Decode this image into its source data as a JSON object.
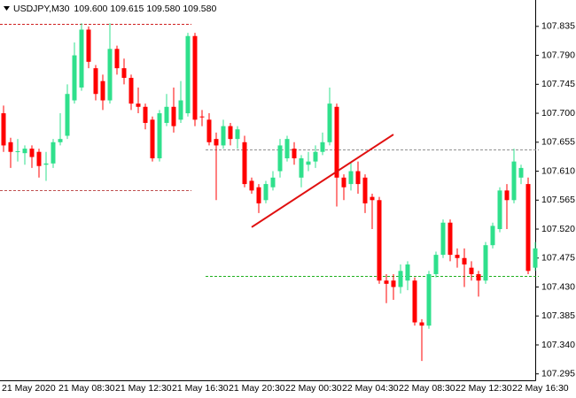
{
  "chart_data": {
    "type": "candlestick",
    "title": "USDJPY,M30",
    "header_values": [
      {
        "value": 109.6,
        "label": "109.600"
      },
      {
        "value": 109.615,
        "label": "109.615"
      },
      {
        "value": 109.58,
        "label": "109.580"
      },
      {
        "value": 109.58,
        "label": "109.580"
      }
    ],
    "categories": [
      "21 May 2020",
      null,
      null,
      null,
      null,
      null,
      null,
      null,
      "21 May 08:30",
      null,
      null,
      null,
      null,
      null,
      null,
      null,
      "21 May 12:30",
      null,
      null,
      null,
      null,
      null,
      null,
      null,
      "21 May 16:30",
      null,
      null,
      null,
      null,
      null,
      null,
      null,
      "21 May 20:30",
      null,
      null,
      null,
      null,
      null,
      null,
      null,
      "22 May 00:30",
      null,
      null,
      null,
      null,
      null,
      null,
      null,
      "22 May 04:30",
      null,
      null,
      null,
      null,
      null,
      null,
      null,
      "22 May 08:30",
      null,
      null,
      null,
      null,
      null,
      null,
      null,
      "22 May 12:30",
      null,
      null,
      null,
      null,
      null,
      null,
      null,
      "22 May 16:30",
      null,
      null,
      null
    ],
    "open": [
      107.7,
      107.655,
      107.64,
      107.638,
      107.645,
      107.64,
      107.62,
      107.622,
      107.655,
      107.665,
      107.72,
      107.74,
      107.83,
      107.77,
      107.75,
      107.72,
      107.8,
      107.77,
      107.755,
      107.715,
      107.71,
      107.69,
      107.63,
      107.685,
      107.71,
      107.69,
      107.7,
      107.82,
      107.695,
      107.69,
      107.66,
      107.65,
      107.68,
      107.66,
      107.655,
      107.595,
      107.585,
      107.565,
      107.585,
      107.61,
      107.63,
      107.645,
      107.6,
      107.62,
      107.625,
      107.64,
      107.655,
      107.71,
      107.6,
      107.59,
      107.61,
      107.6,
      107.57,
      107.565,
      107.44,
      107.44,
      107.43,
      107.44,
      107.44,
      107.375,
      107.37,
      107.45,
      107.48,
      107.53,
      107.48,
      107.475,
      107.46,
      107.45,
      107.44,
      107.495,
      107.52,
      107.58,
      107.565,
      107.6,
      107.59,
      107.46
    ],
    "high": [
      107.712,
      107.662,
      107.66,
      107.65,
      107.65,
      107.645,
      107.64,
      107.66,
      107.7,
      107.745,
      107.81,
      107.84,
      107.835,
      107.775,
      107.76,
      107.84,
      107.805,
      107.785,
      107.76,
      107.74,
      107.715,
      107.695,
      107.705,
      107.73,
      107.74,
      107.75,
      107.825,
      107.825,
      107.705,
      107.7,
      107.67,
      107.69,
      107.685,
      107.68,
      107.665,
      107.6,
      107.59,
      107.595,
      107.61,
      107.66,
      107.665,
      107.655,
      107.635,
      107.64,
      107.65,
      107.67,
      107.74,
      107.715,
      107.605,
      107.625,
      107.625,
      107.605,
      107.575,
      107.57,
      107.45,
      107.45,
      107.465,
      107.47,
      107.445,
      107.38,
      107.455,
      107.485,
      107.535,
      107.535,
      107.49,
      107.49,
      107.47,
      107.455,
      107.5,
      107.53,
      107.585,
      107.59,
      107.645,
      107.62,
      107.6,
      107.5
    ],
    "low": [
      107.64,
      107.615,
      107.625,
      107.62,
      107.615,
      107.6,
      107.595,
      107.615,
      107.65,
      107.66,
      107.715,
      107.735,
      107.77,
      107.72,
      107.705,
      107.715,
      107.76,
      107.745,
      107.705,
      107.7,
      107.675,
      107.625,
      107.625,
      107.68,
      107.67,
      107.685,
      107.695,
      107.68,
      107.68,
      107.65,
      107.565,
      107.645,
      107.65,
      107.645,
      107.585,
      107.575,
      107.545,
      107.56,
      107.58,
      107.6,
      107.625,
      107.62,
      107.585,
      107.61,
      107.615,
      107.635,
      107.65,
      107.555,
      107.565,
      107.58,
      107.575,
      107.545,
      107.52,
      107.435,
      107.405,
      107.41,
      107.42,
      107.425,
      107.37,
      107.315,
      107.365,
      107.445,
      107.475,
      107.47,
      107.46,
      107.43,
      107.44,
      107.415,
      107.435,
      107.49,
      107.515,
      107.52,
      107.56,
      107.59,
      107.45,
      107.455
    ],
    "close": [
      107.65,
      107.64,
      107.641,
      107.645,
      107.632,
      107.618,
      107.622,
      107.655,
      107.66,
      107.73,
      107.79,
      107.83,
      107.78,
      107.73,
      107.72,
      107.8,
      107.77,
      107.755,
      107.715,
      107.71,
      107.685,
      107.63,
      107.7,
      107.71,
      107.68,
      107.72,
      107.82,
      107.69,
      107.694,
      107.655,
      107.65,
      107.68,
      107.66,
      107.675,
      107.59,
      107.58,
      107.56,
      107.59,
      107.6,
      107.65,
      107.66,
      107.63,
      107.63,
      107.625,
      107.64,
      107.655,
      107.715,
      107.6,
      107.585,
      107.61,
      107.59,
      107.56,
      107.565,
      107.44,
      107.435,
      107.43,
      107.455,
      107.465,
      107.375,
      107.37,
      107.45,
      107.48,
      107.53,
      107.48,
      107.475,
      107.465,
      107.45,
      107.44,
      107.495,
      107.525,
      107.58,
      107.565,
      107.625,
      107.615,
      107.455,
      107.49
    ],
    "up_color": "#2fe08c",
    "down_color": "#ff0000",
    "ylim": [
      107.285,
      107.876
    ],
    "yticks": [
      107.835,
      {
        "value": 107.79,
        "label": "107.790"
      },
      107.745,
      {
        "value": 107.7,
        "label": "107.700"
      },
      107.655,
      {
        "value": 107.61,
        "label": "107.610"
      },
      107.565,
      {
        "value": 107.52,
        "label": "107.520"
      },
      107.475,
      {
        "value": 107.43,
        "label": "107.430"
      },
      107.385,
      {
        "value": 107.34,
        "label": "107.340"
      },
      107.295
    ],
    "levels": [
      {
        "value": 107.839,
        "color": "#d02020",
        "start": 0,
        "end": 26
      },
      {
        "value": 107.581,
        "color": "#c05050",
        "start": 0,
        "end": 26
      },
      {
        "value": 107.644,
        "color": "#909090",
        "start": 29,
        "end": 75
      },
      {
        "value": 107.447,
        "color": "#20b020",
        "start": 29,
        "end": 75
      }
    ],
    "trendline": {
      "color": "#e01010",
      "start": 35,
      "end": 55,
      "values": [
        107.523,
        107.667
      ]
    }
  }
}
